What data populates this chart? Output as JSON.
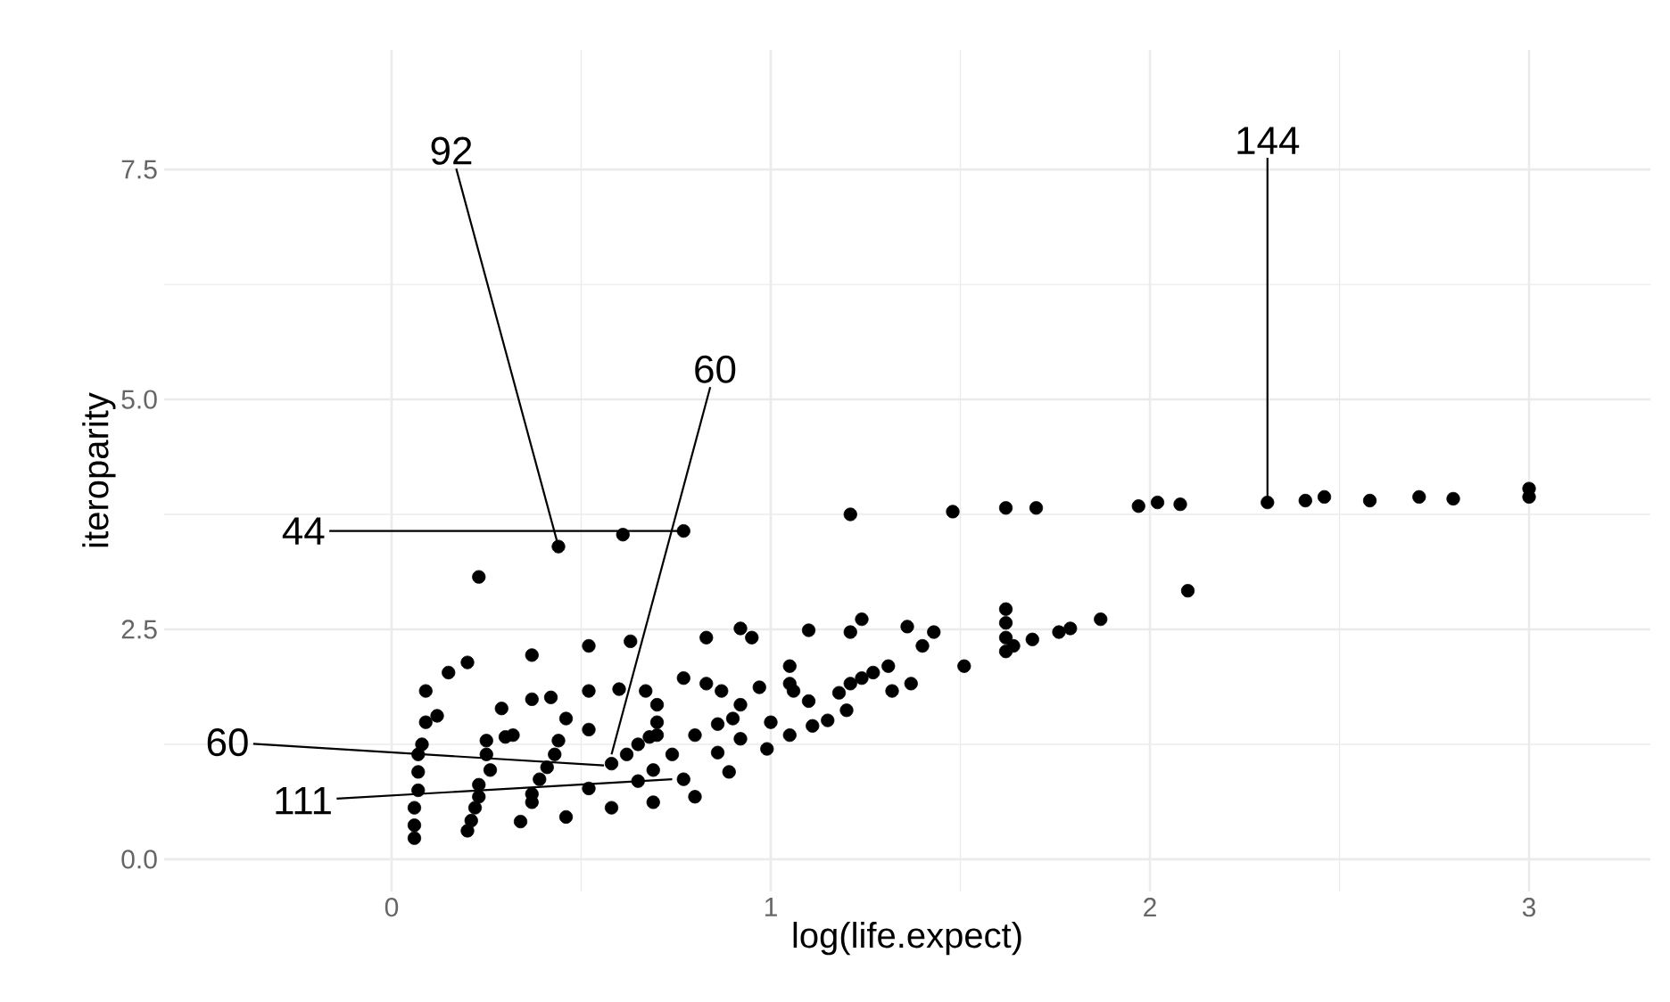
{
  "chart_data": {
    "type": "scatter",
    "xlabel": "log(life.expect)",
    "ylabel": "iteroparity",
    "xlim": [
      -0.6,
      3.32
    ],
    "ylim": [
      -0.35,
      8.8
    ],
    "xticks": [
      0,
      1,
      2,
      3
    ],
    "yticks": [
      {
        "value": 0,
        "label": "0.0"
      },
      2.5,
      {
        "value": 5,
        "label": "5.0"
      },
      7.5
    ],
    "grid": true,
    "marker": "circle",
    "color": "#000000",
    "x": [
      0.44,
      0.61,
      0.77,
      0.23,
      0.2,
      0.15,
      0.09,
      0.12,
      0.09,
      0.08,
      0.07,
      0.07,
      0.07,
      0.06,
      0.06,
      0.06,
      0.37,
      0.52,
      0.63,
      0.83,
      0.92,
      0.95,
      0.29,
      0.37,
      0.42,
      0.52,
      0.6,
      0.67,
      0.7,
      0.77,
      0.83,
      0.87,
      0.97,
      1.05,
      1.05,
      0.46,
      0.52,
      0.7,
      0.7,
      0.92,
      0.9,
      0.86,
      0.8,
      0.92,
      1.0,
      0.99,
      1.05,
      0.86,
      0.89,
      0.32,
      0.3,
      0.25,
      0.25,
      0.26,
      0.23,
      0.23,
      0.22,
      0.21,
      0.2,
      0.44,
      0.43,
      0.41,
      0.39,
      0.37,
      0.37,
      0.34,
      0.46,
      0.58,
      0.52,
      0.58,
      0.62,
      0.65,
      0.68,
      0.65,
      0.69,
      0.74,
      0.69,
      0.77,
      0.8,
      1.21,
      1.48,
      1.62,
      1.7,
      1.97,
      2.02,
      2.08,
      2.31,
      2.41,
      2.46,
      2.58,
      2.71,
      2.8,
      3.0,
      3.0,
      2.1,
      1.87,
      1.79,
      1.76,
      1.69,
      1.64,
      1.62,
      1.62,
      1.62,
      1.62,
      1.43,
      1.4,
      1.36,
      1.24,
      1.21,
      1.1,
      1.51,
      1.31,
      1.27,
      1.24,
      1.21,
      1.18,
      1.2,
      1.32,
      1.37,
      1.06,
      1.1,
      1.15,
      1.11
    ],
    "values": [
      3.4,
      3.53,
      3.57,
      3.07,
      2.14,
      2.03,
      1.83,
      1.56,
      1.49,
      1.25,
      1.14,
      0.95,
      0.75,
      0.56,
      0.37,
      0.23,
      2.22,
      2.32,
      2.37,
      2.41,
      2.51,
      2.41,
      1.64,
      1.74,
      1.76,
      1.83,
      1.85,
      1.83,
      1.68,
      1.97,
      1.91,
      1.83,
      1.87,
      2.1,
      1.91,
      1.53,
      1.41,
      1.49,
      1.35,
      1.68,
      1.53,
      1.47,
      1.35,
      1.31,
      1.49,
      1.2,
      1.35,
      1.16,
      0.95,
      1.35,
      1.33,
      1.29,
      1.14,
      0.97,
      0.81,
      0.68,
      0.56,
      0.42,
      0.31,
      1.29,
      1.14,
      1.0,
      0.87,
      0.71,
      0.62,
      0.41,
      0.46,
      0.56,
      0.77,
      1.04,
      1.14,
      1.25,
      1.33,
      0.85,
      0.62,
      1.14,
      0.97,
      0.87,
      0.68,
      3.75,
      3.78,
      3.82,
      3.82,
      3.84,
      3.88,
      3.86,
      3.88,
      3.9,
      3.94,
      3.9,
      3.94,
      3.92,
      4.03,
      3.94,
      2.92,
      2.61,
      2.51,
      2.47,
      2.39,
      2.32,
      2.26,
      2.41,
      2.57,
      2.72,
      2.47,
      2.32,
      2.53,
      2.61,
      2.47,
      2.49,
      2.1,
      2.1,
      2.03,
      1.97,
      1.91,
      1.81,
      1.62,
      1.83,
      1.91,
      1.83,
      1.72,
      1.51,
      1.45
    ],
    "annotations": [
      {
        "text": "92",
        "x": 0.44,
        "y": 3.4
      },
      {
        "text": "144",
        "x": 2.31,
        "y": 3.88
      },
      {
        "text": "60",
        "x": 0.58,
        "y": 1.14
      },
      {
        "text": "44",
        "x": 0.77,
        "y": 3.57
      },
      {
        "text": "60",
        "x": 0.56,
        "y": 1.02
      },
      {
        "text": "111",
        "x": 0.74,
        "y": 0.87
      }
    ]
  }
}
